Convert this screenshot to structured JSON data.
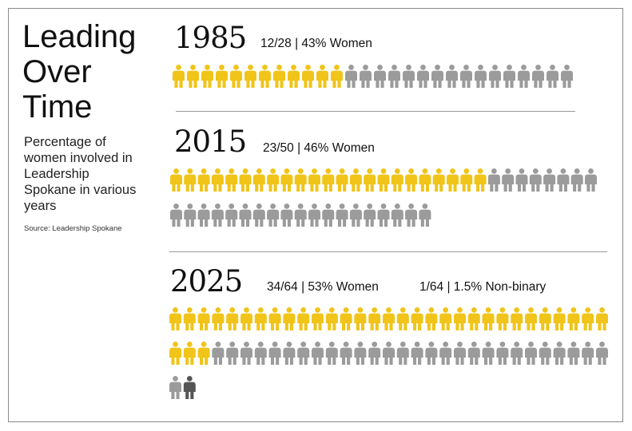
{
  "title_lines": [
    "Leading",
    "Over",
    "Time"
  ],
  "subtitle": "Percentage of women involved in Leadership Spokane in various years",
  "source": "Source: Leadership Spokane",
  "colors": {
    "women": "#f0c419",
    "other": "#9b9b9b",
    "nonbinary": "#555555"
  },
  "icon": "person-icon",
  "chart_data": {
    "type": "pictograph",
    "title": "Leading Over Time",
    "groups": [
      {
        "year": "1985",
        "women": 12,
        "total": 28,
        "nonbinary": 0,
        "label": "12/28 | 43% Women",
        "label2": ""
      },
      {
        "year": "2015",
        "women": 23,
        "total": 50,
        "nonbinary": 0,
        "label": "23/50 | 46% Women",
        "label2": ""
      },
      {
        "year": "2025",
        "women": 34,
        "total": 64,
        "nonbinary": 1,
        "label": "34/64 | 53% Women",
        "label2": "1/64 | 1.5% Non-binary"
      }
    ]
  }
}
